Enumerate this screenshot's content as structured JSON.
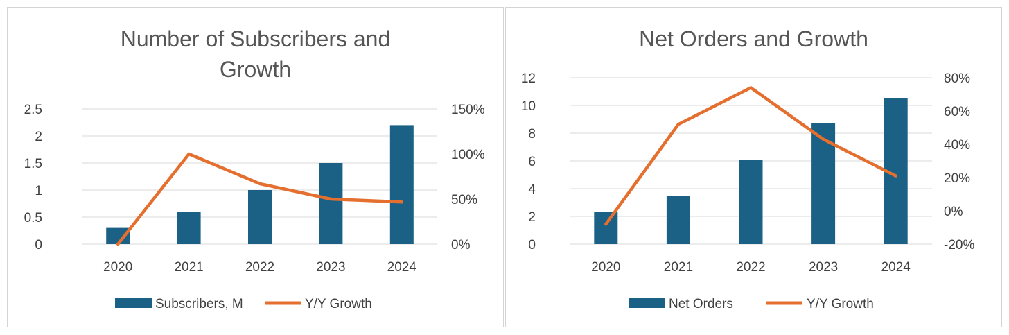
{
  "chart_data": [
    {
      "type": "bar+line",
      "title": "Number of Subscribers and Growth",
      "title_lines": [
        "Number of Subscribers and",
        "Growth"
      ],
      "categories": [
        "2020",
        "2021",
        "2022",
        "2023",
        "2024"
      ],
      "series": [
        {
          "name": "Subscribers, M",
          "type": "bar",
          "axis": "left",
          "color": "#1a6185",
          "values": [
            0.3,
            0.6,
            1.0,
            1.5,
            2.2
          ]
        },
        {
          "name": "Y/Y Growth",
          "type": "line",
          "axis": "right",
          "color": "#e46f2e",
          "values": [
            0,
            1.0,
            0.67,
            0.5,
            0.467
          ]
        }
      ],
      "y_left": {
        "min": 0,
        "max": 2.5,
        "ticks": [
          0,
          0.5,
          1,
          1.5,
          2,
          2.5
        ],
        "tick_labels": [
          "0",
          "0.5",
          "1",
          "1.5",
          "2",
          "2.5"
        ]
      },
      "y_right": {
        "min": 0,
        "max": 1.5,
        "ticks": [
          0,
          0.5,
          1,
          1.5
        ],
        "tick_labels": [
          "0%",
          "50%",
          "100%",
          "150%"
        ]
      },
      "grid": true,
      "legend": "bottom"
    },
    {
      "type": "bar+line",
      "title": "Net Orders and Growth",
      "title_lines": [
        "Net Orders and Growth"
      ],
      "categories": [
        "2020",
        "2021",
        "2022",
        "2023",
        "2024"
      ],
      "series": [
        {
          "name": "Net Orders",
          "type": "bar",
          "axis": "left",
          "color": "#1a6185",
          "values": [
            2.3,
            3.5,
            6.1,
            8.7,
            10.5
          ]
        },
        {
          "name": "Y/Y Growth",
          "type": "line",
          "axis": "right",
          "color": "#e46f2e",
          "values": [
            -0.08,
            0.52,
            0.74,
            0.43,
            0.21
          ]
        }
      ],
      "y_left": {
        "min": 0,
        "max": 12,
        "ticks": [
          0,
          2,
          4,
          6,
          8,
          10,
          12
        ],
        "tick_labels": [
          "0",
          "2",
          "4",
          "6",
          "8",
          "10",
          "12"
        ]
      },
      "y_right": {
        "min": -0.2,
        "max": 0.8,
        "ticks": [
          -0.2,
          0,
          0.2,
          0.4,
          0.6,
          0.8
        ],
        "tick_labels": [
          "-20%",
          "0%",
          "20%",
          "40%",
          "60%",
          "80%"
        ]
      },
      "grid": true,
      "legend": "bottom"
    }
  ]
}
